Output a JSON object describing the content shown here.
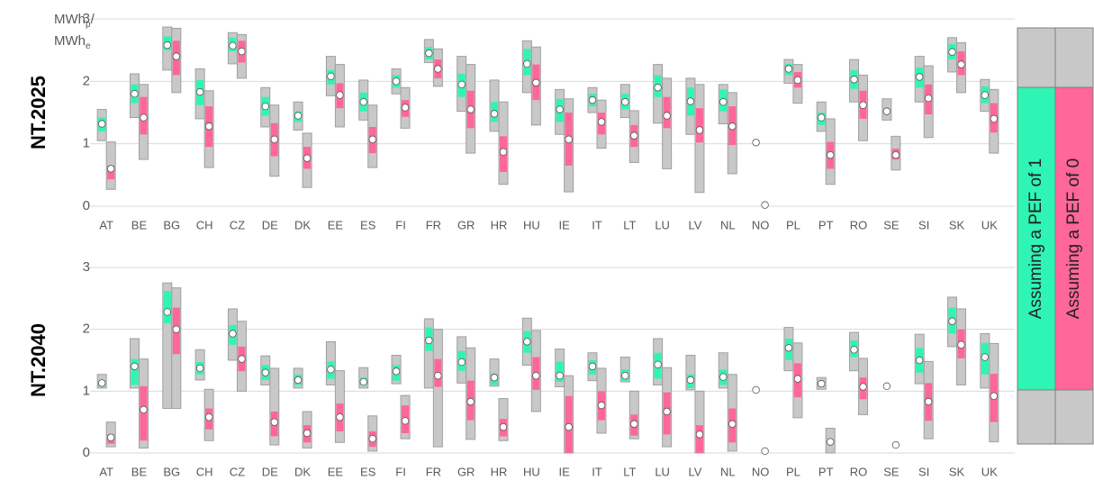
{
  "legend": {
    "entries": [
      {
        "name": "Assuming a PEF of 1",
        "color": "#2ef5b4"
      },
      {
        "name": "Assuming a PEF of 0",
        "color": "#ff6699"
      }
    ]
  },
  "chart_data": [
    {
      "type": "box",
      "title": "NT.2025",
      "y_label": [
        {
          "text": "MWh",
          "sub": "p",
          "suffix": "/"
        },
        {
          "text": "MWh",
          "sub": "e"
        }
      ],
      "categories": [
        "AT",
        "BE",
        "BG",
        "CH",
        "CZ",
        "DE",
        "DK",
        "EE",
        "ES",
        "FI",
        "FR",
        "GR",
        "HR",
        "HU",
        "IE",
        "IT",
        "LT",
        "LU",
        "LV",
        "NL",
        "NO",
        "PL",
        "PT",
        "RO",
        "SE",
        "SI",
        "SK",
        "UK"
      ],
      "ylim": [
        0,
        3
      ],
      "yticks": [
        0,
        1,
        2,
        3
      ],
      "grid": true,
      "series": [
        {
          "color": "#2ef5b4",
          "values": [
            1.32,
            1.8,
            2.58,
            1.83,
            2.57,
            1.6,
            1.45,
            2.08,
            1.67,
            2.0,
            2.45,
            1.95,
            1.48,
            2.28,
            1.55,
            1.7,
            1.67,
            1.9,
            1.68,
            1.67,
            1.02,
            2.2,
            1.42,
            2.03,
            1.52,
            2.07,
            2.47,
            1.78
          ],
          "min": [
            1.05,
            1.42,
            2.18,
            1.4,
            2.28,
            1.27,
            1.22,
            1.77,
            1.38,
            1.8,
            2.3,
            1.52,
            1.2,
            1.82,
            1.15,
            1.5,
            1.42,
            1.33,
            1.15,
            1.32,
            null,
            1.97,
            1.2,
            1.67,
            1.38,
            1.67,
            2.15,
            1.52
          ],
          "max": [
            1.55,
            2.12,
            2.87,
            2.2,
            2.78,
            1.9,
            1.67,
            2.4,
            2.02,
            2.2,
            2.67,
            2.4,
            2.02,
            2.65,
            1.87,
            1.9,
            1.95,
            2.27,
            2.05,
            1.95,
            null,
            2.35,
            1.67,
            2.35,
            1.72,
            2.4,
            2.7,
            2.03
          ],
          "low": [
            1.2,
            1.65,
            2.5,
            1.62,
            2.48,
            1.45,
            1.35,
            1.95,
            1.52,
            1.9,
            2.35,
            1.75,
            1.35,
            2.1,
            1.35,
            1.6,
            1.55,
            1.75,
            1.45,
            1.52,
            null,
            2.1,
            1.3,
            1.88,
            null,
            1.9,
            2.35,
            1.65
          ],
          "high": [
            1.42,
            1.95,
            2.72,
            2.02,
            2.7,
            1.75,
            1.52,
            2.18,
            1.82,
            2.1,
            2.55,
            2.12,
            1.67,
            2.52,
            1.72,
            1.8,
            1.8,
            2.1,
            1.9,
            1.87,
            null,
            2.28,
            1.5,
            2.18,
            null,
            2.22,
            2.6,
            1.92
          ]
        },
        {
          "color": "#ff6699",
          "values": [
            0.6,
            1.42,
            2.4,
            1.28,
            2.48,
            1.07,
            0.77,
            1.78,
            1.07,
            1.58,
            2.2,
            1.55,
            0.87,
            1.98,
            1.07,
            1.35,
            1.13,
            1.45,
            1.22,
            1.28,
            0.02,
            2.02,
            0.82,
            1.62,
            0.82,
            1.73,
            2.27,
            1.4
          ],
          "min": [
            0.27,
            0.75,
            1.82,
            0.62,
            2.05,
            0.48,
            0.3,
            1.27,
            0.62,
            1.25,
            1.92,
            0.85,
            0.35,
            1.3,
            0.23,
            0.93,
            0.7,
            0.6,
            0.22,
            0.52,
            null,
            1.65,
            0.35,
            1.05,
            0.58,
            1.1,
            1.82,
            0.85
          ],
          "max": [
            1.03,
            1.95,
            2.85,
            1.85,
            2.75,
            1.62,
            1.17,
            2.27,
            1.62,
            1.9,
            2.52,
            2.27,
            1.67,
            2.55,
            1.72,
            1.7,
            1.53,
            2.05,
            1.95,
            1.82,
            null,
            2.27,
            1.4,
            2.1,
            1.12,
            2.25,
            2.62,
            1.87
          ],
          "low": [
            0.43,
            1.15,
            2.1,
            0.95,
            2.3,
            0.8,
            0.6,
            1.57,
            0.85,
            1.43,
            2.05,
            1.25,
            0.55,
            1.7,
            0.65,
            1.15,
            0.95,
            1.25,
            1.02,
            0.98,
            null,
            1.9,
            0.6,
            1.4,
            0.75,
            1.47,
            2.1,
            1.18
          ],
          "high": [
            0.65,
            1.75,
            2.65,
            1.6,
            2.65,
            1.33,
            0.95,
            1.97,
            1.27,
            1.7,
            2.35,
            1.85,
            1.12,
            2.27,
            1.5,
            1.5,
            1.3,
            1.75,
            1.57,
            1.6,
            null,
            2.15,
            1.03,
            1.85,
            0.92,
            1.95,
            2.48,
            1.65
          ]
        }
      ]
    },
    {
      "type": "box",
      "title": "NT.2040",
      "categories": [
        "AT",
        "BE",
        "BG",
        "CH",
        "CZ",
        "DE",
        "DK",
        "EE",
        "ES",
        "FI",
        "FR",
        "GR",
        "HR",
        "HU",
        "IE",
        "IT",
        "LT",
        "LU",
        "LV",
        "NL",
        "NO",
        "PL",
        "PT",
        "RO",
        "SE",
        "SI",
        "SK",
        "UK"
      ],
      "ylim": [
        0,
        3
      ],
      "yticks": [
        0,
        1,
        2,
        3
      ],
      "grid": true,
      "series": [
        {
          "color": "#2ef5b4",
          "values": [
            1.13,
            1.4,
            2.28,
            1.37,
            1.93,
            1.3,
            1.18,
            1.35,
            1.15,
            1.32,
            1.82,
            1.47,
            1.22,
            1.8,
            1.25,
            1.4,
            1.25,
            1.43,
            1.18,
            1.23,
            1.02,
            1.7,
            1.12,
            1.67,
            1.08,
            1.5,
            2.13,
            1.55
          ],
          "min": [
            1.05,
            1.05,
            0.72,
            1.18,
            1.5,
            1.1,
            1.05,
            1.1,
            1.05,
            1.12,
            1.05,
            1.13,
            1.08,
            1.42,
            1.07,
            1.17,
            1.15,
            1.1,
            1.02,
            1.05,
            null,
            1.33,
            1.03,
            1.33,
            null,
            1.12,
            1.72,
            1.05
          ],
          "max": [
            1.27,
            1.85,
            2.75,
            1.67,
            2.33,
            1.57,
            1.37,
            1.8,
            1.38,
            1.58,
            2.17,
            1.88,
            1.52,
            2.18,
            1.68,
            1.62,
            1.55,
            1.85,
            1.58,
            1.62,
            null,
            2.03,
            1.22,
            1.95,
            null,
            1.92,
            2.52,
            1.93
          ],
          "low": [
            1.08,
            1.1,
            2.1,
            1.27,
            1.75,
            1.18,
            1.1,
            1.2,
            1.1,
            1.17,
            1.65,
            1.33,
            1.1,
            1.62,
            1.15,
            1.27,
            1.17,
            1.2,
            1.05,
            1.1,
            null,
            1.5,
            null,
            1.55,
            null,
            1.3,
            1.93,
            1.27
          ],
          "high": [
            1.17,
            1.52,
            2.62,
            1.47,
            2.07,
            1.42,
            1.27,
            1.48,
            1.22,
            1.42,
            2.03,
            1.65,
            1.28,
            1.97,
            1.48,
            1.5,
            1.35,
            1.62,
            1.27,
            1.35,
            null,
            1.85,
            null,
            1.82,
            null,
            1.7,
            2.35,
            1.78
          ]
        },
        {
          "color": "#ff6699",
          "values": [
            0.25,
            0.7,
            2.0,
            0.58,
            1.52,
            0.5,
            0.32,
            0.58,
            0.23,
            0.52,
            1.25,
            0.83,
            0.42,
            1.25,
            0.42,
            0.77,
            0.47,
            0.67,
            0.3,
            0.47,
            0.03,
            1.2,
            0.18,
            1.07,
            0.13,
            0.83,
            1.75,
            0.92
          ],
          "min": [
            0.1,
            0.08,
            0.72,
            0.2,
            1.0,
            0.13,
            0.08,
            0.17,
            0.03,
            0.23,
            0.1,
            0.22,
            0.2,
            0.67,
            0,
            0.32,
            0.23,
            0.1,
            0,
            0.03,
            null,
            0.57,
            0,
            0.62,
            null,
            0.23,
            1.1,
            0.18
          ],
          "max": [
            0.5,
            1.52,
            2.67,
            1.03,
            2.13,
            1.37,
            0.67,
            1.33,
            0.6,
            0.93,
            2.0,
            1.7,
            0.88,
            1.98,
            1.25,
            1.37,
            1.0,
            1.38,
            1.0,
            1.27,
            null,
            1.78,
            0.4,
            1.53,
            null,
            1.48,
            2.33,
            1.77
          ],
          "low": [
            0.15,
            0.2,
            1.6,
            0.38,
            1.32,
            0.27,
            0.17,
            0.35,
            0.1,
            0.32,
            1.07,
            0.53,
            0.27,
            1.02,
            0,
            0.53,
            0.28,
            0.3,
            0,
            0.17,
            null,
            0.9,
            null,
            0.87,
            null,
            0.52,
            1.53,
            0.5
          ],
          "high": [
            0.3,
            1.08,
            2.35,
            0.72,
            1.72,
            0.67,
            0.45,
            0.8,
            0.35,
            0.77,
            1.52,
            1.17,
            0.55,
            1.55,
            0.92,
            1.0,
            0.62,
            0.98,
            0.45,
            0.72,
            null,
            1.45,
            null,
            1.22,
            null,
            1.13,
            2.0,
            1.28
          ]
        }
      ]
    }
  ]
}
